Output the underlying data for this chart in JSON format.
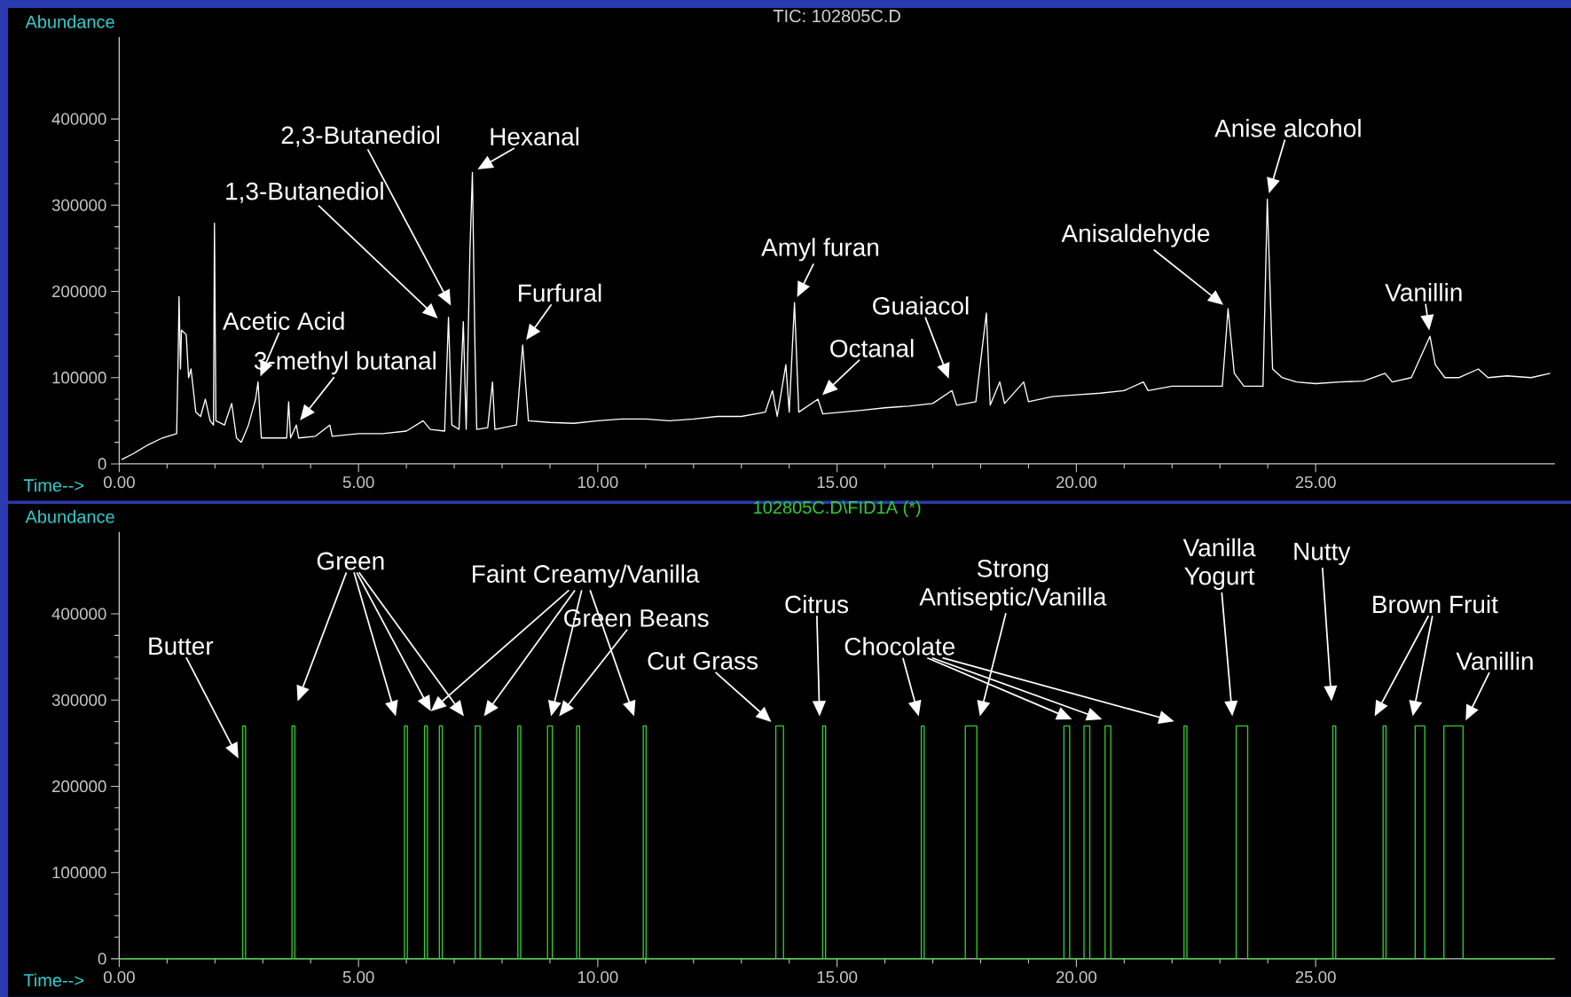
{
  "chart_data": [
    {
      "type": "line",
      "title": "TIC: 102805C.D",
      "xlabel": "Time-->",
      "ylabel": "Abundance",
      "xlim": [
        0,
        30
      ],
      "ylim": [
        0,
        495000
      ],
      "xticks": [
        {
          "value": 0,
          "label": "0.00"
        },
        {
          "value": 5,
          "label": "5.00"
        },
        {
          "value": 10,
          "label": "10.00"
        },
        {
          "value": 15,
          "label": "15.00"
        },
        {
          "value": 20,
          "label": "20.00"
        },
        {
          "value": 25,
          "label": "25.00"
        }
      ],
      "yticks": [
        0,
        100000,
        200000,
        300000,
        400000
      ],
      "series": [
        {
          "color": "#ffffff",
          "x": [
            0.05,
            0.3,
            0.6,
            0.9,
            1.2,
            1.23,
            1.25,
            1.28,
            1.3,
            1.4,
            1.45,
            1.5,
            1.6,
            1.7,
            1.8,
            1.9,
            1.97,
            1.99,
            2.02,
            2.2,
            2.35,
            2.45,
            2.55,
            2.7,
            2.85,
            2.9,
            2.97,
            3.3,
            3.5,
            3.54,
            3.58,
            3.7,
            3.75,
            4.1,
            4.4,
            4.45,
            5.0,
            5.5,
            6.0,
            6.35,
            6.5,
            6.8,
            6.88,
            6.95,
            7.1,
            7.19,
            7.25,
            7.33,
            7.38,
            7.43,
            7.47,
            7.7,
            7.8,
            7.85,
            8.3,
            8.43,
            8.55,
            9.0,
            9.5,
            10.0,
            10.5,
            11.0,
            11.5,
            12.0,
            12.5,
            13.0,
            13.5,
            13.65,
            13.75,
            13.93,
            14.0,
            14.11,
            14.2,
            14.6,
            14.7,
            15.5,
            16.0,
            16.5,
            17.0,
            17.4,
            17.5,
            17.9,
            18.12,
            18.2,
            18.4,
            18.5,
            18.9,
            19.0,
            19.5,
            20.0,
            20.5,
            21.0,
            21.4,
            21.5,
            22.0,
            22.5,
            23.05,
            23.17,
            23.3,
            23.5,
            23.9,
            23.99,
            24.1,
            24.3,
            24.6,
            25.0,
            25.5,
            26.0,
            26.45,
            26.6,
            27.0,
            27.39,
            27.5,
            27.7,
            28.0,
            28.4,
            28.6,
            29.0,
            29.5,
            29.9
          ],
          "values": [
            5000,
            12000,
            22000,
            30000,
            35000,
            120000,
            194000,
            110000,
            155000,
            150000,
            100000,
            110000,
            60000,
            55000,
            75000,
            50000,
            45000,
            279000,
            50000,
            45000,
            70000,
            30000,
            25000,
            45000,
            75000,
            95000,
            30000,
            30000,
            30000,
            72000,
            30000,
            45000,
            30000,
            32000,
            45000,
            32000,
            35000,
            35000,
            38000,
            50000,
            40000,
            38000,
            170000,
            45000,
            40000,
            165000,
            40000,
            250000,
            338000,
            145000,
            40000,
            42000,
            95000,
            40000,
            45000,
            138000,
            50000,
            48000,
            47000,
            50000,
            52000,
            52000,
            50000,
            52000,
            55000,
            55000,
            60000,
            85000,
            55000,
            115000,
            60000,
            187000,
            60000,
            75000,
            58000,
            62000,
            65000,
            67000,
            70000,
            85000,
            68000,
            72000,
            175000,
            68000,
            95000,
            70000,
            95000,
            72000,
            78000,
            80000,
            82000,
            85000,
            95000,
            85000,
            90000,
            90000,
            90000,
            180000,
            105000,
            90000,
            90000,
            307000,
            110000,
            100000,
            95000,
            93000,
            95000,
            96000,
            105000,
            95000,
            100000,
            148000,
            115000,
            100000,
            100000,
            110000,
            100000,
            102000,
            100000,
            105000
          ]
        }
      ],
      "annotations": [
        {
          "text": "Acetic Acid",
          "x": 2.9,
          "y": 95000
        },
        {
          "text": "3-methyl butanal",
          "x": 3.7,
          "y": 45000
        },
        "1,3-Butanediol",
        "2,3-Butanediol",
        {
          "text": "Hexanal",
          "x": 7.38,
          "y": 338000
        },
        {
          "text": "Furfural",
          "x": 8.43,
          "y": 138000
        },
        {
          "text": "Amyl furan",
          "x": 14.11,
          "y": 187000
        },
        {
          "text": "Octanal",
          "x": 14.6,
          "y": 75000
        },
        "Guaiacol",
        {
          "text": "Anisaldehyde",
          "x": 23.17,
          "y": 180000
        },
        {
          "text": "Anise alcohol",
          "x": 23.99,
          "y": 307000
        },
        {
          "text": "Vanillin",
          "x": 27.39,
          "y": 148000
        }
      ]
    },
    {
      "type": "line",
      "title": "102805C.D\\FID1A (*)",
      "xlabel": "Time-->",
      "ylabel": "Abundance",
      "xlim": [
        0,
        30
      ],
      "ylim": [
        0,
        495000
      ],
      "xticks": [
        {
          "value": 0,
          "label": "0.00"
        },
        {
          "value": 5,
          "label": "5.00"
        },
        {
          "value": 10,
          "label": "10.00"
        },
        {
          "value": 15,
          "label": "15.00"
        },
        {
          "value": 20,
          "label": "20.00"
        },
        {
          "value": 25,
          "label": "25.00"
        }
      ],
      "yticks": [
        0,
        100000,
        200000,
        300000,
        400000
      ],
      "series": [
        {
          "color": "#33cc33",
          "x": [
            0,
            2.58,
            2.58,
            2.64,
            2.64,
            3.61,
            3.61,
            3.67,
            3.67,
            5.96,
            5.96,
            6.02,
            6.02,
            6.38,
            6.38,
            6.44,
            6.44,
            6.69,
            6.69,
            6.75,
            6.75,
            7.44,
            7.44,
            7.54,
            7.54,
            8.33,
            8.33,
            8.39,
            8.39,
            8.95,
            8.95,
            9.05,
            9.05,
            9.56,
            9.56,
            9.62,
            9.62,
            10.95,
            10.95,
            11.01,
            11.01,
            13.72,
            13.72,
            13.88,
            13.88,
            14.7,
            14.7,
            14.76,
            14.76,
            16.76,
            16.76,
            16.82,
            16.82,
            17.68,
            17.68,
            17.92,
            17.92,
            19.74,
            19.74,
            19.86,
            19.86,
            20.16,
            20.16,
            20.28,
            20.28,
            20.6,
            20.6,
            20.72,
            20.72,
            22.25,
            22.25,
            22.31,
            22.31,
            23.34,
            23.34,
            23.58,
            23.58,
            25.36,
            25.36,
            25.42,
            25.42,
            26.41,
            26.41,
            26.47,
            26.47,
            27.08,
            27.08,
            27.28,
            27.28,
            27.68,
            27.68,
            28.08,
            28.08,
            29.9
          ],
          "values": [
            0,
            0,
            270000,
            270000,
            0,
            0,
            270000,
            270000,
            0,
            0,
            270000,
            270000,
            0,
            0,
            270000,
            270000,
            0,
            0,
            270000,
            270000,
            0,
            0,
            270000,
            270000,
            0,
            0,
            270000,
            270000,
            0,
            0,
            270000,
            270000,
            0,
            0,
            270000,
            270000,
            0,
            0,
            270000,
            270000,
            0,
            0,
            270000,
            270000,
            0,
            0,
            270000,
            270000,
            0,
            0,
            270000,
            270000,
            0,
            0,
            270000,
            270000,
            0,
            0,
            270000,
            270000,
            0,
            0,
            270000,
            270000,
            0,
            0,
            270000,
            270000,
            0,
            0,
            270000,
            270000,
            0,
            0,
            270000,
            270000,
            0,
            0,
            270000,
            270000,
            0,
            0,
            270000,
            270000,
            0,
            0,
            270000,
            270000,
            0,
            0,
            270000,
            270000,
            0,
            0
          ]
        }
      ],
      "annotations": [
        "Butter",
        "Green",
        "Faint Creamy/Vanilla",
        "Green Beans",
        {
          "text": "Cut Grass",
          "x": 13.72,
          "y": 270000
        },
        "Citrus",
        "Chocolate",
        "Strong Antiseptic/Vanilla",
        "Vanilla Yogurt",
        "Nutty",
        "Brown Fruit",
        {
          "text": "Vanillin",
          "x": 28.08,
          "y": 270000
        }
      ]
    }
  ]
}
